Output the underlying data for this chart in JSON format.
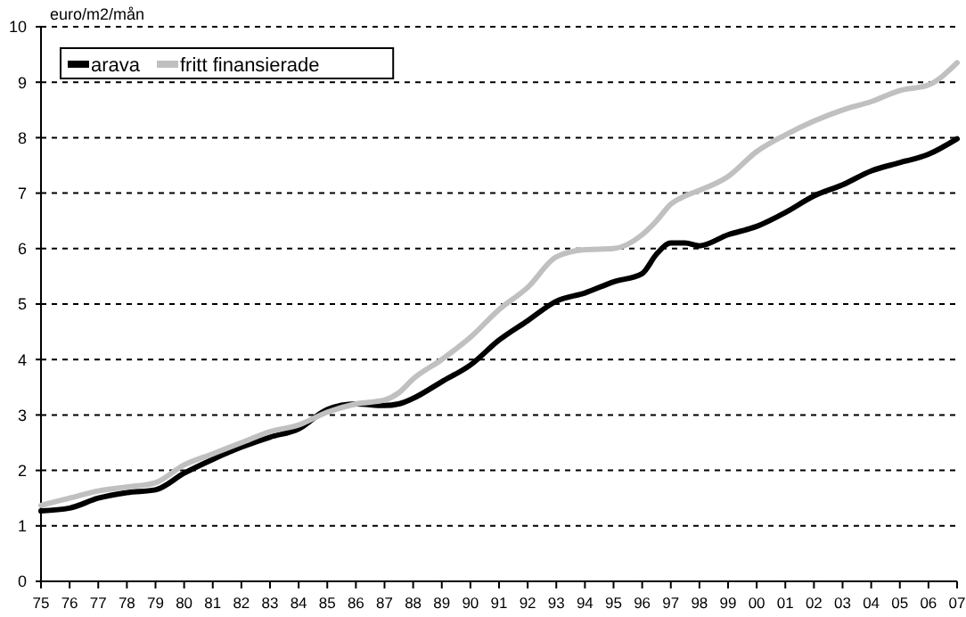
{
  "chart_data": {
    "type": "line",
    "ylabel": "euro/m2/mån",
    "x": [
      1975,
      1976,
      1977,
      1978,
      1979,
      1980,
      1981,
      1982,
      1983,
      1984,
      1985,
      1986,
      1987,
      1987.5,
      1988,
      1989,
      1990,
      1991,
      1992,
      1993,
      1994,
      1995,
      1996,
      1996.5,
      1997,
      1997.5,
      1998,
      1999,
      2000,
      2001,
      2002,
      2003,
      2004,
      2005,
      2006,
      2007
    ],
    "series": [
      {
        "name": "arava",
        "color": "#000000",
        "values": [
          1.27,
          1.32,
          1.5,
          1.6,
          1.65,
          1.95,
          2.2,
          2.42,
          2.6,
          2.75,
          3.1,
          3.2,
          3.17,
          3.2,
          3.3,
          3.6,
          3.9,
          4.35,
          4.7,
          5.05,
          5.2,
          5.4,
          5.55,
          5.9,
          6.1,
          6.1,
          6.05,
          6.25,
          6.4,
          6.65,
          6.95,
          7.15,
          7.4,
          7.55,
          7.7,
          7.98
        ]
      },
      {
        "name": "fritt finansierade",
        "color": "#c0c0c0",
        "values": [
          1.37,
          1.5,
          1.63,
          1.7,
          1.78,
          2.1,
          2.3,
          2.5,
          2.7,
          2.82,
          3.05,
          3.2,
          3.27,
          3.4,
          3.65,
          4.0,
          4.4,
          4.9,
          5.3,
          5.85,
          5.98,
          6.0,
          6.25,
          6.5,
          6.8,
          6.95,
          7.05,
          7.3,
          7.75,
          8.05,
          8.3,
          8.5,
          8.65,
          8.85,
          8.95,
          9.35
        ]
      }
    ],
    "xlim": [
      1975,
      2007
    ],
    "xticks": [
      {
        "value": 1975,
        "label": "75"
      },
      {
        "value": 1976,
        "label": "76"
      },
      {
        "value": 1977,
        "label": "77"
      },
      {
        "value": 1978,
        "label": "78"
      },
      {
        "value": 1979,
        "label": "79"
      },
      {
        "value": 1980,
        "label": "80"
      },
      {
        "value": 1981,
        "label": "81"
      },
      {
        "value": 1982,
        "label": "82"
      },
      {
        "value": 1983,
        "label": "83"
      },
      {
        "value": 1984,
        "label": "84"
      },
      {
        "value": 1985,
        "label": "85"
      },
      {
        "value": 1986,
        "label": "86"
      },
      {
        "value": 1987,
        "label": "87"
      },
      {
        "value": 1988,
        "label": "88"
      },
      {
        "value": 1989,
        "label": "89"
      },
      {
        "value": 1990,
        "label": "90"
      },
      {
        "value": 1991,
        "label": "91"
      },
      {
        "value": 1992,
        "label": "92"
      },
      {
        "value": 1993,
        "label": "93"
      },
      {
        "value": 1994,
        "label": "94"
      },
      {
        "value": 1995,
        "label": "95"
      },
      {
        "value": 1996,
        "label": "96"
      },
      {
        "value": 1997,
        "label": "97"
      },
      {
        "value": 1998,
        "label": "98"
      },
      {
        "value": 1999,
        "label": "99"
      },
      {
        "value": 2000,
        "label": "00"
      },
      {
        "value": 2001,
        "label": "01"
      },
      {
        "value": 2002,
        "label": "02"
      },
      {
        "value": 2003,
        "label": "03"
      },
      {
        "value": 2004,
        "label": "04"
      },
      {
        "value": 2005,
        "label": "05"
      },
      {
        "value": 2006,
        "label": "06"
      },
      {
        "value": 2007,
        "label": "07"
      }
    ],
    "ylim": [
      0,
      10
    ],
    "yticks": [
      0,
      1,
      2,
      3,
      4,
      5,
      6,
      7,
      8,
      9,
      10
    ],
    "grid": "y",
    "legend": "top left",
    "line_style": "solid",
    "marker": "none"
  }
}
